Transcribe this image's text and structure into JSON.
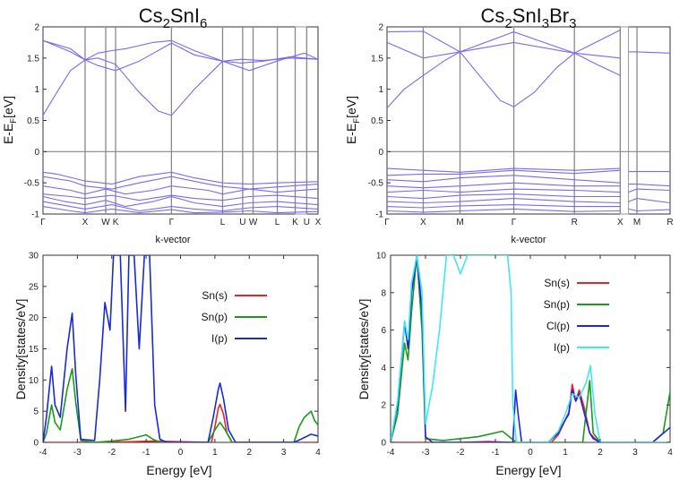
{
  "chart_data": [
    {
      "id": "band_left",
      "type": "line",
      "title_parts": [
        "Cs",
        "2",
        "SnI",
        "6"
      ],
      "ylabel_parts": [
        "E-E",
        "F",
        "[eV]"
      ],
      "xlabel": "k-vector",
      "ylim": [
        -1,
        2
      ],
      "yticks": [
        "-1",
        "-0.5",
        "0",
        "0.5",
        "1",
        "1.5",
        "2"
      ],
      "kpoints": [
        "Γ",
        "X",
        "W",
        "K",
        "Γ",
        "L",
        "U",
        "W",
        "L",
        "K",
        "U",
        "X"
      ],
      "kpos": [
        0,
        0.153,
        0.228,
        0.264,
        0.467,
        0.653,
        0.726,
        0.764,
        0.852,
        0.917,
        0.959,
        1.0
      ],
      "gap": [
        0.917,
        0.959
      ],
      "series": [
        {
          "x": [
            0,
            0.1,
            0.153,
            0.2,
            0.25,
            0.3,
            0.4,
            0.467,
            0.55,
            0.653,
            0.72,
            0.8,
            0.9,
            1.0
          ],
          "y": [
            1.78,
            1.6,
            1.47,
            1.58,
            1.62,
            1.65,
            1.75,
            1.78,
            1.62,
            1.45,
            1.48,
            1.46,
            1.5,
            1.48
          ]
        },
        {
          "x": [
            0,
            0.1,
            0.153,
            0.2,
            0.264,
            0.35,
            0.467,
            0.55,
            0.653,
            0.72,
            0.8,
            0.9,
            1.0
          ],
          "y": [
            1.78,
            1.65,
            1.47,
            1.38,
            1.3,
            1.45,
            1.74,
            1.55,
            1.45,
            1.42,
            1.45,
            1.52,
            1.48
          ]
        },
        {
          "x": [
            0,
            0.05,
            0.1,
            0.153,
            0.2,
            0.264,
            0.35,
            0.42,
            0.467,
            0.55,
            0.653,
            0.75,
            0.85,
            0.95,
            1.0
          ],
          "y": [
            0.58,
            0.95,
            1.3,
            1.47,
            1.5,
            1.4,
            0.95,
            0.65,
            0.58,
            1.0,
            1.45,
            1.3,
            1.45,
            1.58,
            1.48
          ]
        },
        {
          "x": [
            0,
            0.05,
            0.153,
            0.25,
            0.35,
            0.467,
            0.55,
            0.653,
            0.75,
            0.85,
            1.0
          ],
          "y": [
            -0.33,
            -0.36,
            -0.47,
            -0.52,
            -0.4,
            -0.33,
            -0.42,
            -0.5,
            -0.52,
            -0.5,
            -0.48
          ]
        },
        {
          "x": [
            0,
            0.1,
            0.153,
            0.25,
            0.35,
            0.467,
            0.6,
            0.653,
            0.75,
            0.9,
            1.0
          ],
          "y": [
            -0.4,
            -0.47,
            -0.55,
            -0.6,
            -0.5,
            -0.4,
            -0.52,
            -0.56,
            -0.6,
            -0.55,
            -0.52
          ]
        },
        {
          "x": [
            0,
            0.1,
            0.153,
            0.228,
            0.3,
            0.4,
            0.467,
            0.6,
            0.653,
            0.75,
            0.85,
            1.0
          ],
          "y": [
            -0.55,
            -0.62,
            -0.68,
            -0.6,
            -0.68,
            -0.62,
            -0.55,
            -0.62,
            -0.68,
            -0.6,
            -0.65,
            -0.6
          ]
        },
        {
          "x": [
            0,
            0.1,
            0.153,
            0.25,
            0.35,
            0.467,
            0.55,
            0.653,
            0.75,
            0.85,
            1.0
          ],
          "y": [
            -0.68,
            -0.72,
            -0.75,
            -0.7,
            -0.78,
            -0.7,
            -0.75,
            -0.78,
            -0.72,
            -0.7,
            -0.75
          ]
        },
        {
          "x": [
            0,
            0.08,
            0.153,
            0.228,
            0.3,
            0.4,
            0.467,
            0.55,
            0.653,
            0.75,
            0.85,
            1.0
          ],
          "y": [
            -0.72,
            -0.8,
            -0.85,
            -0.78,
            -0.88,
            -0.8,
            -0.72,
            -0.82,
            -0.88,
            -0.82,
            -0.8,
            -0.85
          ]
        },
        {
          "x": [
            0,
            0.1,
            0.153,
            0.25,
            0.35,
            0.467,
            0.55,
            0.653,
            0.75,
            0.85,
            1.0
          ],
          "y": [
            -0.8,
            -0.88,
            -0.92,
            -0.85,
            -0.95,
            -0.88,
            -0.92,
            -0.95,
            -0.9,
            -0.88,
            -0.92
          ]
        },
        {
          "x": [
            0,
            0.1,
            0.153,
            0.25,
            0.35,
            0.467,
            0.55,
            0.653,
            0.75,
            0.85,
            1.0
          ],
          "y": [
            -0.88,
            -0.95,
            -0.98,
            -0.92,
            -0.98,
            -0.93,
            -0.98,
            -0.97,
            -0.95,
            -0.98,
            -0.96
          ]
        }
      ]
    },
    {
      "id": "band_right",
      "type": "line",
      "title_parts": [
        "Cs",
        "2",
        "SnI",
        "3",
        "Br",
        "3"
      ],
      "ylabel_parts": [
        "E-E",
        "F",
        "[eV]"
      ],
      "xlabel": "k-vector",
      "ylim": [
        -1,
        2
      ],
      "yticks": [
        "-1",
        "-0.5",
        "0",
        "0.5",
        "1",
        "1.5",
        "2"
      ],
      "kpoints": [
        "Γ",
        "X",
        "M",
        "Γ",
        "R",
        "X",
        "M",
        "R"
      ],
      "kpos": [
        0,
        0.128,
        0.258,
        0.448,
        0.662,
        0.824,
        0.883,
        1.0
      ],
      "gap": [
        0.824,
        0.853
      ],
      "series": [
        {
          "x": [
            0,
            0.128,
            0.258,
            0.448,
            0.662,
            0.824
          ],
          "y": [
            1.92,
            1.93,
            1.6,
            1.92,
            1.58,
            1.95
          ]
        },
        {
          "x": [
            0.853,
            0.883,
            1.0
          ],
          "y": [
            1.6,
            1.6,
            1.58
          ]
        },
        {
          "x": [
            0,
            0.128,
            0.258,
            0.448,
            0.662,
            0.824
          ],
          "y": [
            1.75,
            1.5,
            1.6,
            1.75,
            1.58,
            1.5
          ]
        },
        {
          "x": [
            0,
            0.06,
            0.128,
            0.2,
            0.258,
            0.33,
            0.4,
            0.448,
            0.52,
            0.6,
            0.662,
            0.74,
            0.824
          ],
          "y": [
            0.7,
            1.0,
            1.22,
            1.45,
            1.6,
            1.2,
            0.82,
            0.72,
            0.95,
            1.35,
            1.58,
            1.4,
            1.22
          ]
        },
        {
          "x": [
            0,
            0.128,
            0.258,
            0.448,
            0.662,
            0.824
          ],
          "y": [
            -0.27,
            -0.3,
            -0.33,
            -0.27,
            -0.3,
            -0.27
          ]
        },
        {
          "x": [
            0.853,
            0.883,
            1.0
          ],
          "y": [
            -0.32,
            -0.32,
            -0.32
          ]
        },
        {
          "x": [
            0,
            0.128,
            0.258,
            0.448,
            0.662,
            0.824
          ],
          "y": [
            -0.38,
            -0.36,
            -0.36,
            -0.3,
            -0.35,
            -0.3
          ]
        },
        {
          "x": [
            0,
            0.128,
            0.258,
            0.448,
            0.662,
            0.824
          ],
          "y": [
            -0.45,
            -0.48,
            -0.42,
            -0.38,
            -0.45,
            -0.5
          ]
        },
        {
          "x": [
            0.853,
            0.883,
            1.0
          ],
          "y": [
            -0.52,
            -0.52,
            -0.55
          ]
        },
        {
          "x": [
            0,
            0.128,
            0.258,
            0.448,
            0.662,
            0.824
          ],
          "y": [
            -0.55,
            -0.58,
            -0.55,
            -0.5,
            -0.55,
            -0.55
          ]
        },
        {
          "x": [
            0,
            0.128,
            0.258,
            0.448,
            0.662,
            0.824
          ],
          "y": [
            -0.65,
            -0.62,
            -0.65,
            -0.6,
            -0.62,
            -0.65
          ]
        },
        {
          "x": [
            0.853,
            0.883,
            1.0
          ],
          "y": [
            -0.65,
            -0.6,
            -0.62
          ]
        },
        {
          "x": [
            0,
            0.128,
            0.258,
            0.448,
            0.662,
            0.824
          ],
          "y": [
            -0.72,
            -0.75,
            -0.7,
            -0.68,
            -0.72,
            -0.72
          ]
        },
        {
          "x": [
            0,
            0.128,
            0.258,
            0.448,
            0.662,
            0.824
          ],
          "y": [
            -0.8,
            -0.82,
            -0.8,
            -0.75,
            -0.8,
            -0.82
          ]
        },
        {
          "x": [
            0.853,
            0.883,
            1.0
          ],
          "y": [
            -0.8,
            -0.75,
            -0.82
          ]
        },
        {
          "x": [
            0,
            0.128,
            0.258,
            0.448,
            0.662,
            0.824
          ],
          "y": [
            -0.88,
            -0.9,
            -0.87,
            -0.85,
            -0.88,
            -0.88
          ]
        },
        {
          "x": [
            0,
            0.128,
            0.258,
            0.448,
            0.662,
            0.824
          ],
          "y": [
            -0.95,
            -0.97,
            -0.95,
            -0.92,
            -0.96,
            -0.95
          ]
        },
        {
          "x": [
            0.853,
            0.883,
            1.0
          ],
          "y": [
            -0.92,
            -0.95,
            -0.93
          ]
        }
      ]
    },
    {
      "id": "dos_left",
      "type": "line",
      "xlabel": "Energy [eV]",
      "ylabel": "Density[states/eV]",
      "xlim": [
        -4,
        4
      ],
      "ylim": [
        0,
        30
      ],
      "xticks": [
        "-4",
        "-3",
        "-2",
        "-1",
        "0",
        "1",
        "2",
        "3",
        "4"
      ],
      "yticks": [
        "0",
        "5",
        "10",
        "15",
        "20",
        "25",
        "30"
      ],
      "legend": "top-right",
      "series": [
        {
          "name": "Sn(s)",
          "color": "#e8232a",
          "x": [
            -4,
            -2.5,
            -1.5,
            -0.8,
            0.9,
            1.0,
            1.1,
            1.15,
            1.25,
            1.35,
            1.5,
            4
          ],
          "y": [
            0,
            0,
            0.1,
            0.2,
            0,
            2.5,
            5.5,
            6.1,
            4.5,
            1.5,
            0,
            0
          ]
        },
        {
          "name": "Sn(p)",
          "color": "#1a9a1a",
          "x": [
            -4,
            -3.9,
            -3.75,
            -3.65,
            -3.5,
            -3.3,
            -3.15,
            -3.05,
            -2.9,
            -2.5,
            -2.0,
            -1.5,
            -1.0,
            -0.8,
            -0.6,
            0.8,
            1.0,
            1.15,
            1.3,
            1.5,
            3.3,
            3.45,
            3.6,
            3.8,
            3.9,
            4
          ],
          "y": [
            0,
            1.5,
            6.0,
            3.2,
            2.0,
            8.5,
            11.8,
            6.5,
            0.3,
            0,
            0.2,
            0.5,
            1.2,
            0.5,
            0,
            0,
            2.0,
            3.2,
            2.0,
            0,
            0,
            2.5,
            4.0,
            5.0,
            3.5,
            2.8
          ]
        },
        {
          "name": "I(p)",
          "color": "#1a2ad8",
          "x": [
            -4,
            -3.9,
            -3.75,
            -3.65,
            -3.5,
            -3.3,
            -3.15,
            -3.05,
            -2.9,
            -2.5,
            -2.35,
            -2.2,
            -2.05,
            -1.95,
            -1.75,
            -1.6,
            -1.5,
            -1.35,
            -1.2,
            -1.05,
            -0.9,
            -0.75,
            -0.6,
            -0.4,
            0.8,
            0.95,
            1.1,
            1.15,
            1.25,
            1.4,
            1.6,
            3.3,
            3.5,
            3.8,
            4
          ],
          "y": [
            0,
            4,
            12.2,
            6,
            4,
            15,
            20.7,
            11,
            0.5,
            0.3,
            10,
            22.4,
            18,
            30,
            30,
            5,
            30,
            30,
            15,
            30,
            30,
            6,
            0.5,
            0,
            0,
            4,
            8.5,
            9.5,
            7,
            2,
            0,
            0,
            0.5,
            1.3,
            1.0
          ]
        }
      ]
    },
    {
      "id": "dos_right",
      "type": "line",
      "xlabel": "Energy [eV]",
      "ylabel": "Density[states/eV]",
      "xlim": [
        -4,
        4
      ],
      "ylim": [
        0,
        10
      ],
      "xticks": [
        "-4",
        "-3",
        "-2",
        "-1",
        "0",
        "1",
        "2",
        "3",
        "4"
      ],
      "yticks": [
        "0",
        "2",
        "4",
        "6",
        "8",
        "10"
      ],
      "legend": "top-right",
      "series": [
        {
          "name": "Sn(s)",
          "color": "#e8232a",
          "x": [
            -4,
            -2,
            -1.2,
            -0.6,
            0.6,
            0.8,
            1.0,
            1.1,
            1.2,
            1.3,
            1.4,
            1.55,
            1.7,
            1.85,
            2.0,
            4
          ],
          "y": [
            0,
            0,
            0.05,
            0,
            0,
            0.4,
            1.2,
            1.6,
            3.1,
            2.2,
            2.8,
            1.8,
            0.5,
            0.2,
            0,
            0
          ]
        },
        {
          "name": "Sn(p)",
          "color": "#1a9a1a",
          "x": [
            -4,
            -3.8,
            -3.6,
            -3.5,
            -3.4,
            -3.25,
            -3.1,
            -3.0,
            -2.5,
            -1.5,
            -0.8,
            -0.6,
            -0.4,
            0.5,
            1.5,
            1.7,
            1.8,
            2.0,
            3.5,
            3.8,
            4
          ],
          "y": [
            0,
            1.5,
            5.3,
            4.4,
            7.0,
            10,
            6.0,
            0.2,
            0.1,
            0.3,
            0.6,
            0.3,
            0,
            0,
            0,
            3.3,
            0.5,
            0,
            0,
            0.5,
            2.7
          ]
        },
        {
          "name": "Cl(p)",
          "color": "#1a2ad8",
          "x": [
            -4,
            -3.8,
            -3.6,
            -3.5,
            -3.4,
            -3.25,
            -3.1,
            -3.0,
            -2.8,
            -0.5,
            -0.42,
            -0.35,
            -0.25,
            0.5,
            0.8,
            1.0,
            1.1,
            1.2,
            1.3,
            1.4,
            1.55,
            1.7,
            1.8,
            2.0,
            3.5,
            4
          ],
          "y": [
            0,
            2,
            6.4,
            5,
            8,
            10,
            7,
            0.3,
            0,
            0,
            2.8,
            1.5,
            0,
            0,
            0.5,
            1.2,
            1.5,
            2.8,
            2.2,
            2.6,
            1.5,
            0.5,
            0.2,
            0,
            0,
            0.8
          ]
        },
        {
          "name": "I(p)",
          "color": "#3ee8f0",
          "x": [
            -4,
            -3.8,
            -3.6,
            -3.5,
            -3.4,
            -3.25,
            -3.1,
            -3.0,
            -2.8,
            -2.6,
            -2.4,
            -2.2,
            -2.0,
            -1.8,
            -1.6,
            -1.5,
            -1.2,
            -0.8,
            -0.65,
            -0.55,
            -0.5,
            -0.4,
            0.5,
            0.8,
            1.0,
            1.2,
            1.4,
            1.6,
            1.72,
            1.85,
            2.0,
            4
          ],
          "y": [
            0,
            2.2,
            6.5,
            5.5,
            8.5,
            10,
            8,
            1,
            3,
            6,
            10,
            10,
            9,
            10,
            10,
            10,
            10,
            10,
            10,
            8,
            2,
            0,
            0,
            0.6,
            1.5,
            2.6,
            2.4,
            3.2,
            4.1,
            1.5,
            0,
            0
          ]
        }
      ]
    }
  ]
}
